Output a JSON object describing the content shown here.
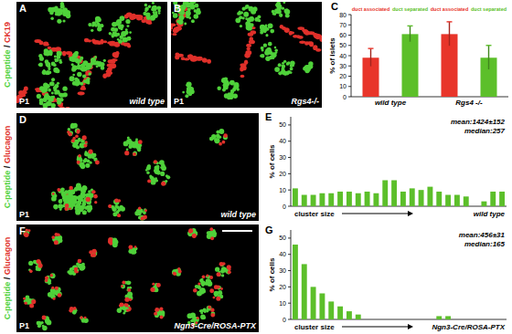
{
  "panels": [
    {
      "letter": "A",
      "stain": [
        "C-peptide",
        "/",
        "CK19"
      ],
      "stage": "P1",
      "genotype": "wild type"
    },
    {
      "letter": "B",
      "stain": [
        "C-peptide",
        "/",
        "CK19"
      ],
      "stage": "P1",
      "genotype": "Rgs4-/-"
    },
    {
      "letter": "D",
      "stain": [
        "C-peptide",
        "/",
        "Glucagon"
      ],
      "stage": "P1",
      "genotype": "wild type"
    },
    {
      "letter": "F",
      "stain": [
        "C-peptide",
        "/",
        "Glucagon"
      ],
      "stage": "P1",
      "genotype": "Ngn3-Cre/ROSA-PTX"
    }
  ],
  "chart_data": [
    {
      "label": "C",
      "type": "bar",
      "y_label": "% of islets",
      "categories": [
        "wild type",
        "Rgs4 -/-"
      ],
      "series": [
        {
          "name": "duct associated",
          "color": "#e8352a",
          "values": [
            38,
            61
          ],
          "errors": [
            9,
            12
          ]
        },
        {
          "name": "duct separated",
          "color": "#5cbf2a",
          "values": [
            61,
            38
          ],
          "errors": [
            8,
            12
          ]
        }
      ],
      "ylim": [
        0,
        80
      ],
      "yticks": [
        0,
        10,
        20,
        30,
        40,
        50,
        60,
        70,
        80
      ]
    },
    {
      "label": "E",
      "type": "bar",
      "y_label": "% of cells",
      "x_label": "cluster size",
      "annotations": [
        "mean:1424±152",
        "median:257"
      ],
      "genotype": "wild type",
      "categories": [
        null,
        null,
        null,
        null,
        null,
        null,
        null,
        null,
        null,
        null,
        null,
        null,
        null,
        null,
        null,
        null,
        null,
        null,
        null,
        null,
        null,
        null,
        null,
        null
      ],
      "values": [
        11,
        7,
        7,
        8,
        8,
        9,
        9,
        8,
        9,
        8,
        16,
        16,
        9,
        11,
        10,
        12,
        9,
        7,
        7,
        6,
        0,
        3,
        9,
        9
      ],
      "color": "#5cbf2a",
      "ylim": [
        0,
        55
      ],
      "yticks": [
        0,
        10,
        20,
        30,
        40,
        50
      ]
    },
    {
      "label": "G",
      "type": "bar",
      "y_label": "% of cells",
      "x_label": "cluster size",
      "annotations": [
        "mean:456±31",
        "median:165"
      ],
      "genotype": "Ngn3-Cre/ROSA-PTX",
      "categories": [
        null,
        null,
        null,
        null,
        null,
        null,
        null,
        null,
        null,
        null,
        null,
        null,
        null,
        null,
        null,
        null,
        null,
        null,
        null,
        null,
        null,
        null,
        null,
        null
      ],
      "values": [
        46,
        34,
        20,
        16,
        11,
        8,
        5,
        3,
        0,
        0,
        0,
        0,
        0,
        0,
        0,
        0,
        2,
        2,
        0,
        0,
        0,
        0,
        0,
        0
      ],
      "color": "#5cbf2a",
      "ylim": [
        0,
        55
      ],
      "yticks": [
        0,
        10,
        20,
        30,
        40,
        50
      ]
    }
  ]
}
